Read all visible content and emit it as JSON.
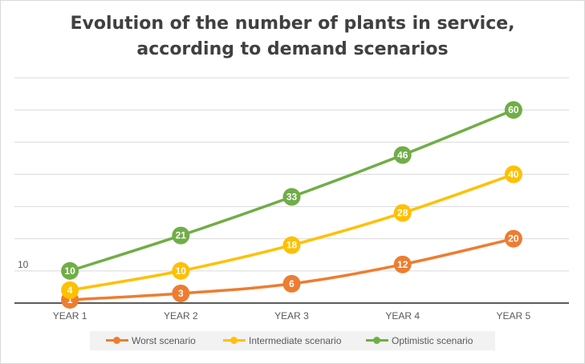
{
  "chart_data": {
    "type": "line",
    "title_lines": [
      "Evolution of the number of plants in service,",
      "according to demand scenarios"
    ],
    "categories": [
      "YEAR 1",
      "YEAR 2",
      "YEAR 3",
      "YEAR 4",
      "YEAR 5"
    ],
    "ylim": [
      0,
      70
    ],
    "y_tick_labels": [
      "10"
    ],
    "grid": true,
    "legend_position": "bottom",
    "series": [
      {
        "name": "Worst scenario",
        "color": "#ed7d31",
        "values": [
          1,
          3,
          6,
          12,
          20
        ]
      },
      {
        "name": "Intermediate scenario",
        "color": "#ffc000",
        "values": [
          4,
          10,
          18,
          28,
          40
        ]
      },
      {
        "name": "Optimistic scenario",
        "color": "#70ad47",
        "values": [
          10,
          21,
          33,
          46,
          60
        ]
      }
    ]
  }
}
